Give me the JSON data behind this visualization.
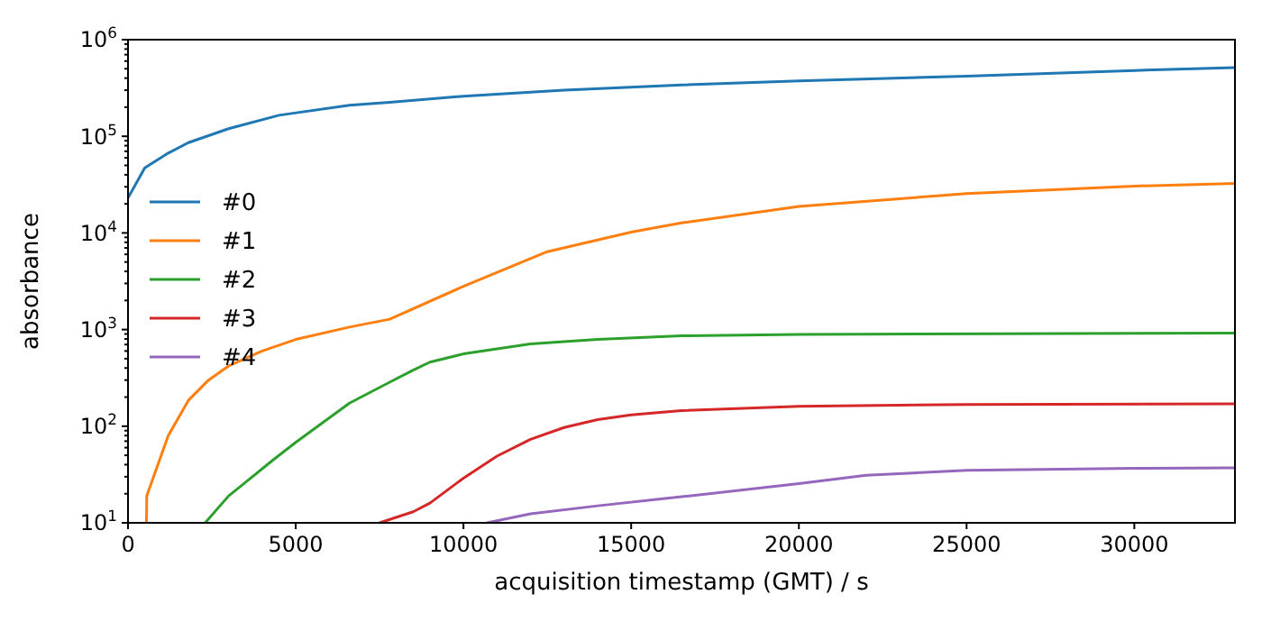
{
  "chart_data": {
    "type": "line",
    "xlabel": "acquisition timestamp (GMT) / s",
    "ylabel": "absorbance",
    "log": "y",
    "xlim": [
      0,
      33000
    ],
    "ylim": [
      10,
      1000000
    ],
    "xticks": [
      0,
      5000,
      10000,
      15000,
      20000,
      25000,
      30000
    ],
    "yticks": [
      {
        "value": 10,
        "label": "10$^{1}$"
      },
      {
        "value": 100,
        "label": "10$^{2}$"
      },
      {
        "value": 1000,
        "label": "10$^{3}$"
      },
      {
        "value": 10000,
        "label": "10$^{4}$"
      },
      {
        "value": 100000,
        "label": "10$^{5}$"
      },
      {
        "value": 1000000,
        "label": "10$^{6}$"
      }
    ],
    "grid": false,
    "legend": "left",
    "line_style": "solid",
    "marker": "none",
    "series": [
      {
        "name": "#0",
        "color": "#1f77b4",
        "x": [
          0,
          500,
          1200,
          1800,
          3000,
          4500,
          6600,
          7800,
          10000,
          13000,
          16500,
          20000,
          25000,
          30000,
          33000
        ],
        "values": [
          23000,
          47000,
          67000,
          86000,
          120000,
          165000,
          210000,
          225000,
          260000,
          300000,
          340000,
          375000,
          420000,
          480000,
          515000
        ]
      },
      {
        "name": "#1",
        "color": "#ff7f0e",
        "x": [
          550,
          560,
          1200,
          1800,
          2400,
          3000,
          4000,
          5000,
          6600,
          7800,
          10000,
          12500,
          15000,
          16500,
          20000,
          25000,
          30000,
          33000
        ],
        "values": [
          10,
          19,
          80,
          185,
          300,
          420,
          600,
          790,
          1060,
          1280,
          2800,
          6400,
          10200,
          12700,
          18800,
          25500,
          30500,
          32500
        ]
      },
      {
        "name": "#2",
        "color": "#2ca02c",
        "x": [
          2300,
          3000,
          3600,
          4300,
          5000,
          6600,
          7800,
          8500,
          9000,
          10000,
          12000,
          14000,
          16500,
          20000,
          33000
        ],
        "values": [
          10,
          19,
          28,
          44,
          68,
          173,
          285,
          380,
          460,
          560,
          710,
          790,
          860,
          890,
          920
        ]
      },
      {
        "name": "#3",
        "color": "#d62728",
        "x": [
          7500,
          8500,
          9000,
          10000,
          11000,
          12000,
          13000,
          14000,
          15000,
          16500,
          20000,
          25000,
          33000
        ],
        "values": [
          10,
          13,
          16,
          29,
          49,
          73,
          97,
          117,
          131,
          145,
          161,
          168,
          170
        ]
      },
      {
        "name": "#4",
        "color": "#9467bd",
        "x": [
          10700,
          12000,
          14000,
          16500,
          20000,
          22000,
          25000,
          30000,
          33000
        ],
        "values": [
          10,
          12.4,
          15,
          18.6,
          25.5,
          31,
          35,
          36.7,
          37
        ]
      }
    ]
  }
}
